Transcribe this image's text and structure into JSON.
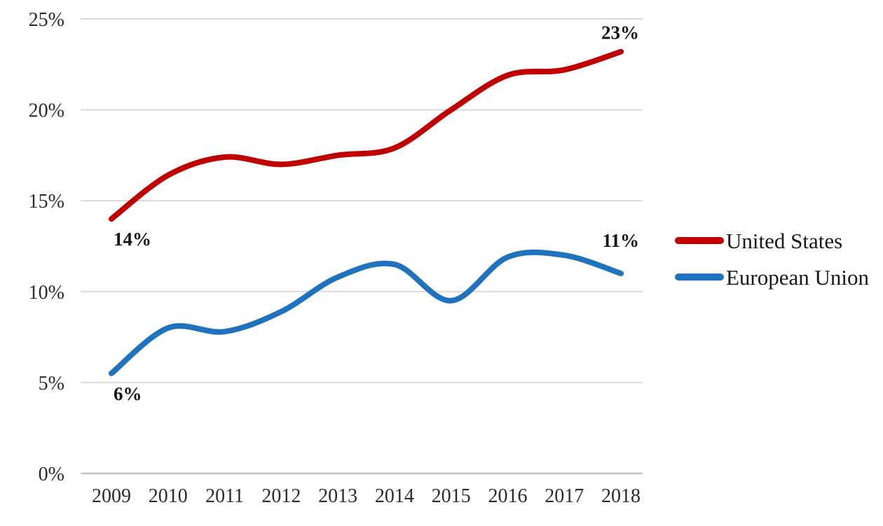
{
  "chart_data": {
    "type": "line",
    "x": [
      "2009",
      "2010",
      "2011",
      "2012",
      "2013",
      "2014",
      "2015",
      "2016",
      "2017",
      "2018"
    ],
    "series": [
      {
        "name": "United States",
        "color": "#C00000",
        "values": [
          14,
          16.4,
          17.4,
          17.0,
          17.5,
          17.9,
          20.0,
          21.9,
          22.2,
          23.2
        ]
      },
      {
        "name": "European Union",
        "color": "#1F72BD",
        "values": [
          5.5,
          8.0,
          7.8,
          8.9,
          10.8,
          11.5,
          9.5,
          11.9,
          12.0,
          11.0
        ]
      }
    ],
    "annotations": [
      {
        "series": 0,
        "point_index": 0,
        "text": "14%",
        "placement": "below-start"
      },
      {
        "series": 0,
        "point_index": 9,
        "text": "23%",
        "placement": "above-end"
      },
      {
        "series": 1,
        "point_index": 0,
        "text": "6%",
        "placement": "below-start"
      },
      {
        "series": 1,
        "point_index": 9,
        "text": "11%",
        "placement": "above-end-high"
      }
    ],
    "y_axis": {
      "min": 0,
      "max": 25,
      "step": 5,
      "tick_labels": [
        "0%",
        "5%",
        "10%",
        "15%",
        "20%",
        "25%"
      ]
    },
    "x_axis": {
      "tick_labels": [
        "2009",
        "2010",
        "2011",
        "2012",
        "2013",
        "2014",
        "2015",
        "2016",
        "2017",
        "2018"
      ]
    },
    "grid": "horizontal",
    "legend_position": "right",
    "colors": {
      "gridline": "#D9D9D9",
      "baseline": "#C4C4C4",
      "tick_text": "#2b2b2b",
      "annotation_text": "#141414",
      "background": "#ffffff"
    }
  }
}
